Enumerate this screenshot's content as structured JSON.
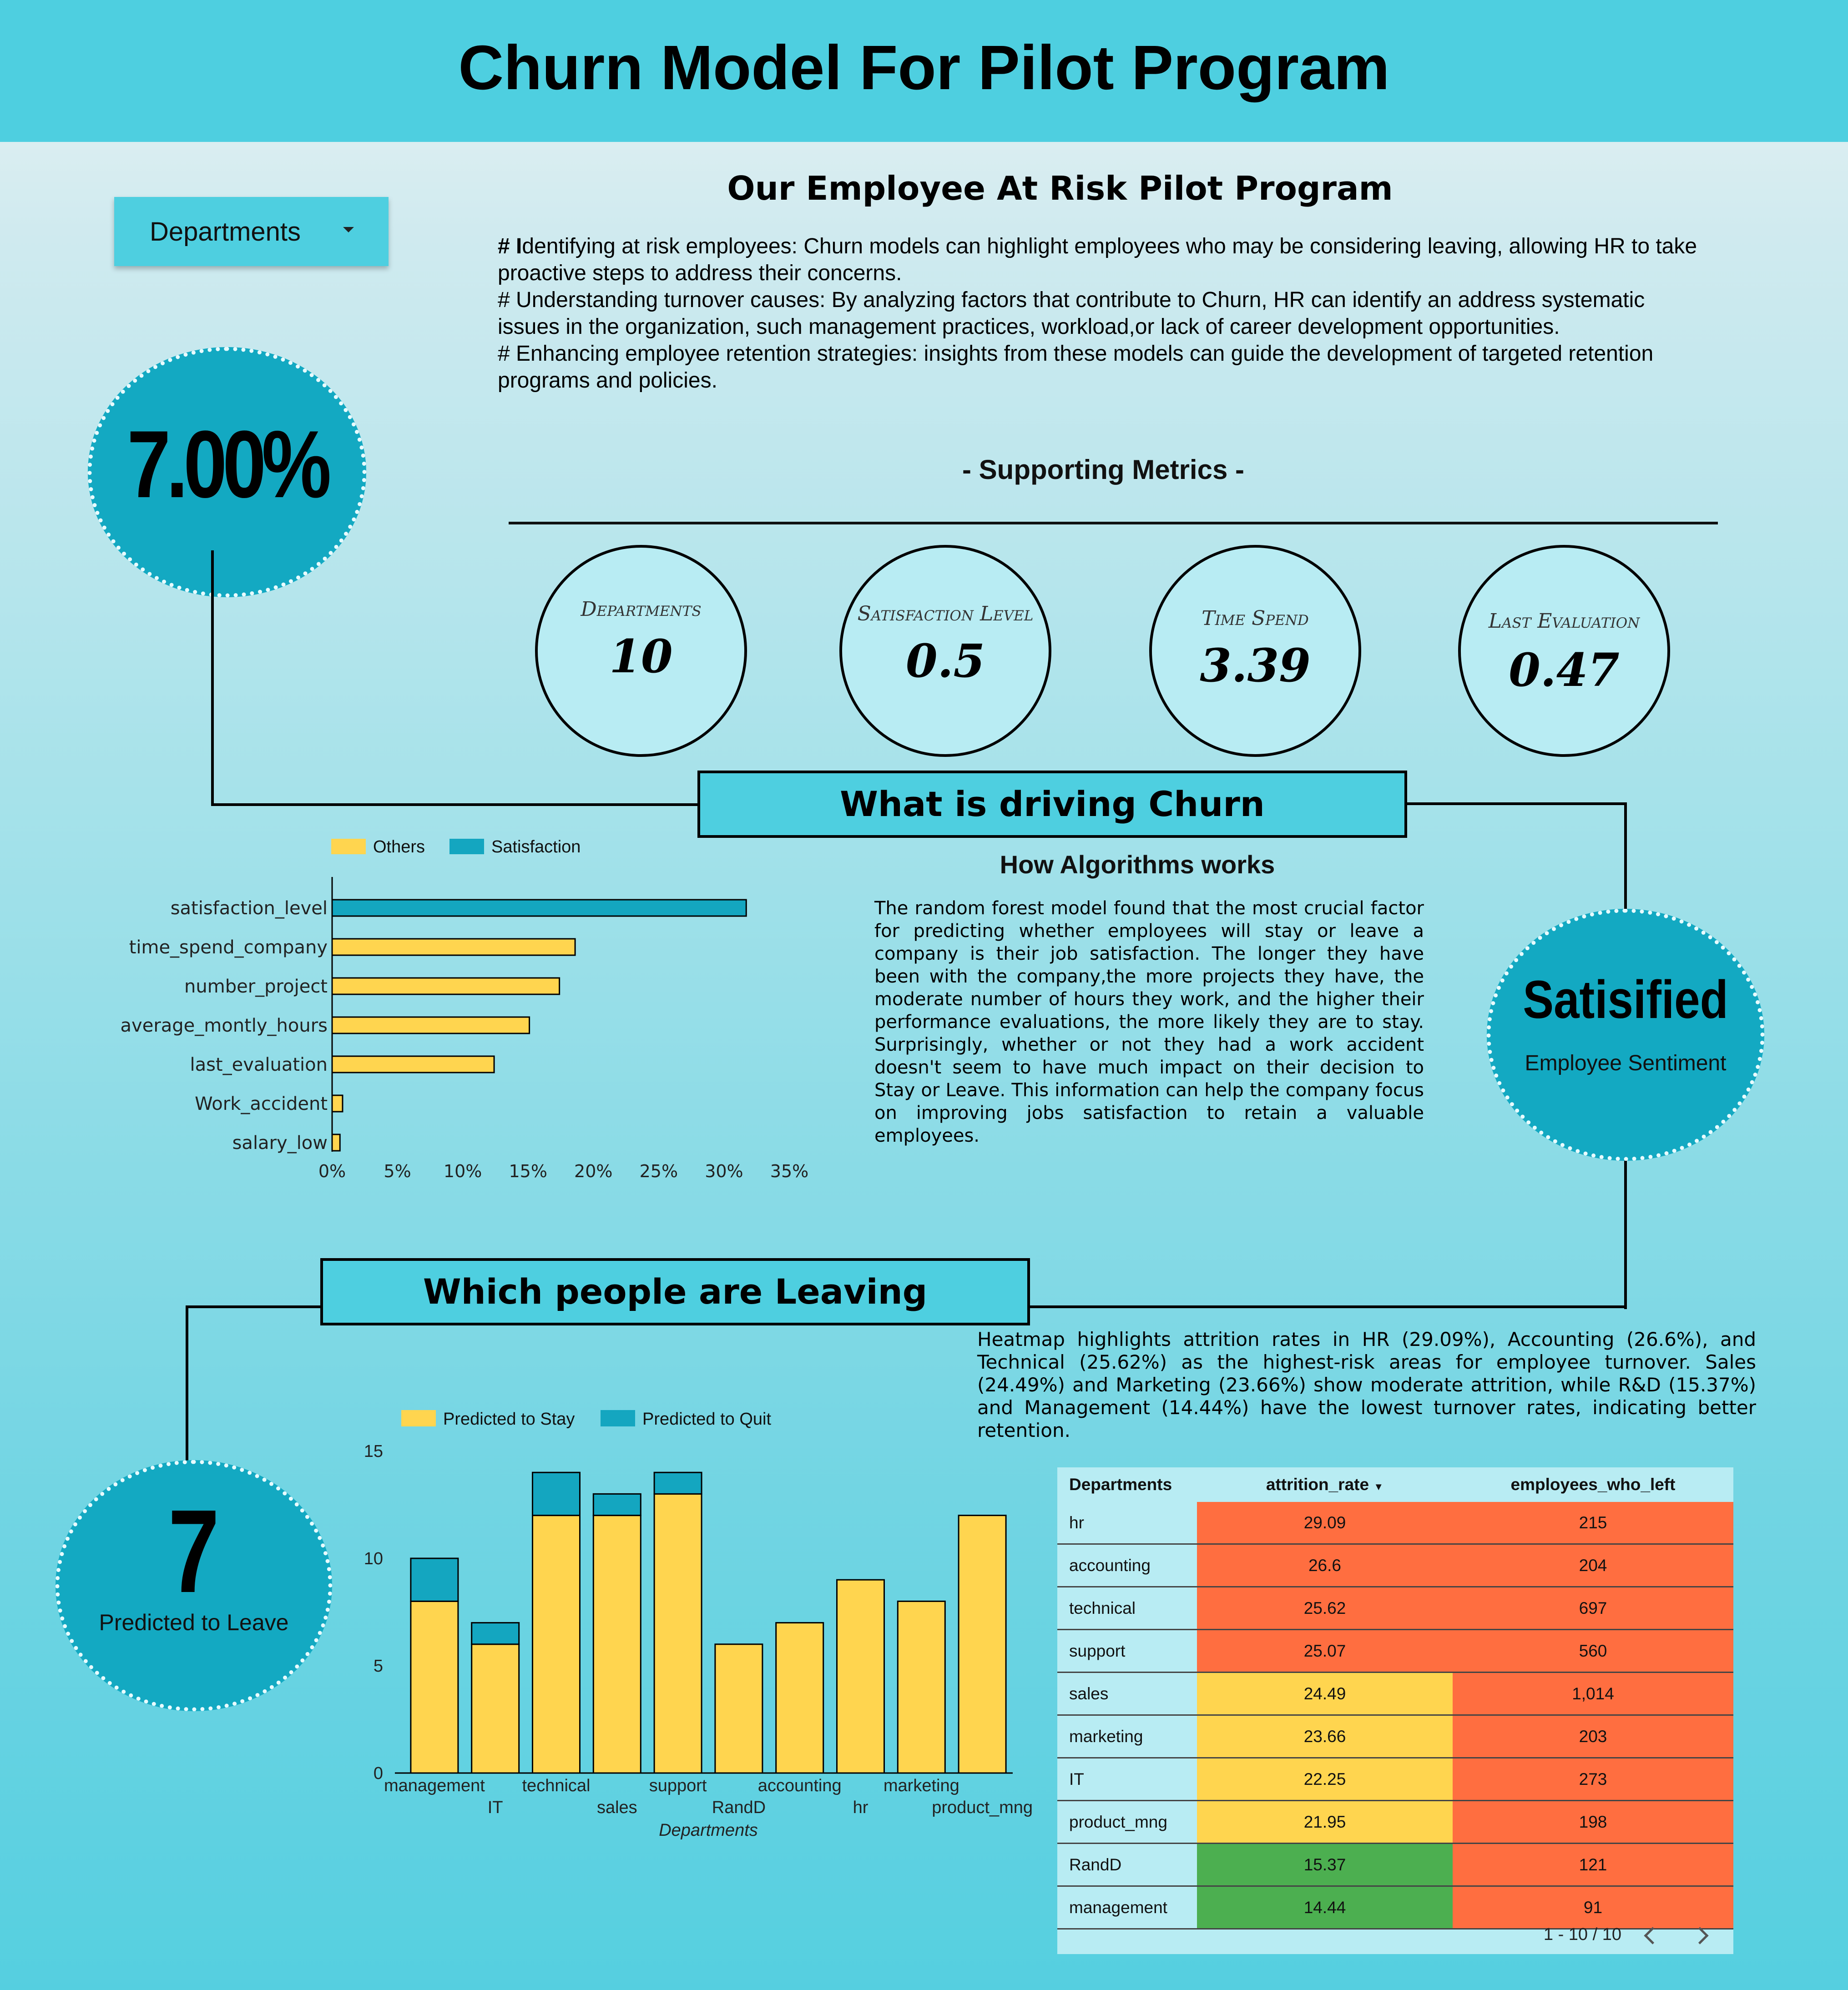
{
  "header": {
    "title": "Churn Model For Pilot Program"
  },
  "filter": {
    "label": "Departments"
  },
  "churn": {
    "value": "7.00%"
  },
  "program": {
    "title": "Our Employee At Risk Pilot Program",
    "lines": [
      {
        "lead": "# I",
        "text": "dentifying at risk employees: Churn models can highlight employees who may be considering leaving, allowing HR to take proactive steps to address their concerns."
      },
      {
        "lead": "",
        "text": "# Understanding turnover causes: By analyzing factors that contribute to Churn, HR can identify an address systematic issues in the organization, such management practices, workload,or lack of career development opportunities."
      },
      {
        "lead": "",
        "text": "# Enhancing employee retention strategies: insights from these models can guide the development of targeted retention programs and policies."
      }
    ]
  },
  "metrics": {
    "title": "- Supporting Metrics -",
    "items": [
      {
        "label": "Departments",
        "value": "10"
      },
      {
        "label": "Satisfaction Level",
        "value": "0.5"
      },
      {
        "label": "Time Spend",
        "value": "3.39"
      },
      {
        "label": "Last Evaluation",
        "value": "0.47"
      }
    ]
  },
  "driving": {
    "title": "What is driving Churn",
    "algo_title": "How Algorithms works",
    "algo_text": "The random forest model found that the most crucial factor for predicting whether employees will stay or leave a company is their job satisfaction. The longer they have been with the company,the more projects they have, the moderate number of hours they work, and the higher their performance evaluations, the more likely they are to stay. Surprisingly, whether or not they had a work accident doesn't seem to have much impact on their decision to Stay or Leave. This information can help the company focus on improving jobs satisfaction to retain a valuable employees."
  },
  "sentiment": {
    "value": "Satisified",
    "label": "Employee Sentiment"
  },
  "leaving": {
    "title": "Which people are Leaving",
    "heatmap_text": "Heatmap highlights attrition rates in HR (29.09%), Accounting (26.6%), and Technical (25.62%) as the highest-risk areas for employee turnover. Sales (24.49%) and Marketing (23.66%) show moderate attrition, while R&D (15.37%) and Management (14.44%) have the lowest turnover rates, indicating better retention."
  },
  "predicted": {
    "value": "7",
    "label": "Predicted to Leave"
  },
  "colors": {
    "yellow": "#ffd54f",
    "teal": "#14a6c0",
    "red": "#ff6e40",
    "green": "#4caf50",
    "accent": "#4ecfe0"
  },
  "chart_data": [
    {
      "type": "bar",
      "orientation": "horizontal",
      "categories": [
        "satisfaction_level",
        "time_spend_company",
        "number_project",
        "average_montly_hours",
        "last_evaluation",
        "Work_accident",
        "salary_low"
      ],
      "series": [
        {
          "name": "Others",
          "values": [
            0,
            18.6,
            17.4,
            15.1,
            12.4,
            0.8,
            0.6
          ]
        },
        {
          "name": "Satisfaction",
          "values": [
            31.7,
            0,
            0,
            0,
            0,
            0,
            0
          ]
        }
      ],
      "xticks": [
        "0%",
        "5%",
        "10%",
        "15%",
        "20%",
        "25%",
        "30%",
        "35%"
      ],
      "xlim": [
        0,
        35
      ],
      "legend": "top"
    },
    {
      "type": "bar",
      "stacked": true,
      "categories": [
        "management",
        "IT",
        "technical",
        "sales",
        "support",
        "RandD",
        "accounting",
        "hr",
        "marketing",
        "product_mng"
      ],
      "series": [
        {
          "name": "Predicted to Stay",
          "values": [
            8,
            6,
            12,
            12,
            13,
            6,
            7,
            9,
            8,
            12
          ]
        },
        {
          "name": "Predicted to Quit",
          "values": [
            2,
            1,
            2,
            1,
            1,
            0,
            0,
            0,
            0,
            0
          ]
        }
      ],
      "xlabel": "Departments",
      "yticks": [
        "0",
        "5",
        "10",
        "15"
      ],
      "ylim": [
        0,
        15
      ],
      "legend": "top"
    },
    {
      "type": "table",
      "columns": [
        "Departments",
        "attrition_rate",
        "employees_who_left"
      ],
      "rows": [
        [
          "hr",
          "29.09",
          "215"
        ],
        [
          "accounting",
          "26.6",
          "204"
        ],
        [
          "technical",
          "25.62",
          "697"
        ],
        [
          "support",
          "25.07",
          "560"
        ],
        [
          "sales",
          "24.49",
          "1,014"
        ],
        [
          "marketing",
          "23.66",
          "203"
        ],
        [
          "IT",
          "22.25",
          "273"
        ],
        [
          "product_mng",
          "21.95",
          "198"
        ],
        [
          "RandD",
          "15.37",
          "121"
        ],
        [
          "management",
          "14.44",
          "91"
        ]
      ],
      "rate_colors": [
        "red",
        "red",
        "red",
        "red",
        "yellow",
        "yellow",
        "yellow",
        "yellow",
        "green",
        "green"
      ],
      "left_colors": [
        "red",
        "red",
        "red",
        "red",
        "red",
        "red",
        "red",
        "red",
        "red",
        "red"
      ],
      "pagination": "1 - 10 / 10"
    }
  ]
}
